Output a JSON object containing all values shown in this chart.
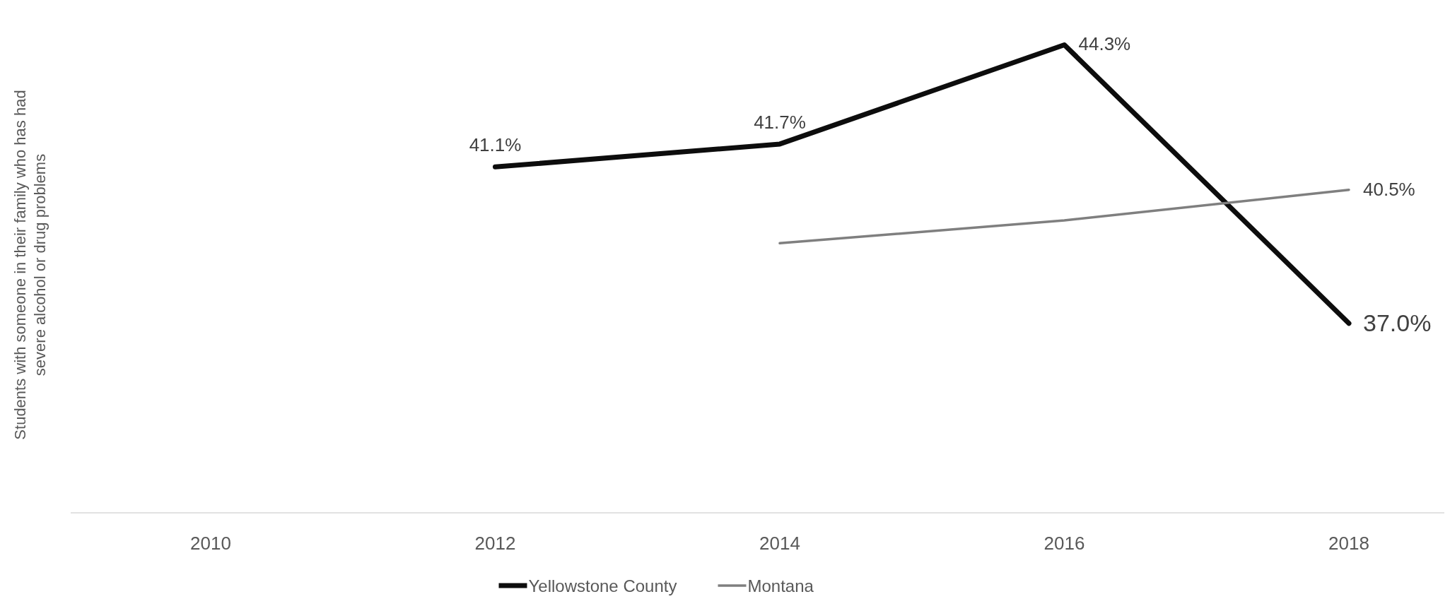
{
  "chart_data": {
    "type": "line",
    "ylabel": "Students with someone in their family who has had severe alcohol or drug problems",
    "categories": [
      "2010",
      "2012",
      "2014",
      "2016",
      "2018"
    ],
    "tick_labels": "x",
    "legend": "bottom",
    "marker": "none",
    "line_style": "solid",
    "series": [
      {
        "name": "Yellowstone County",
        "color": "#0d0d0d",
        "values": [
          null,
          41.1,
          41.7,
          44.3,
          37.0
        ],
        "value_labels": [
          null,
          "41.1%",
          "41.7%",
          "44.3%",
          "37.0%"
        ]
      },
      {
        "name": "Montana",
        "color": "#7f7f7f",
        "values": [
          null,
          null,
          39.1,
          39.7,
          40.5
        ],
        "value_labels": [
          null,
          null,
          null,
          null,
          "40.5%"
        ]
      }
    ]
  }
}
